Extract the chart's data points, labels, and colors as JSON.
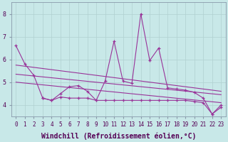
{
  "x": [
    0,
    1,
    2,
    3,
    4,
    5,
    6,
    7,
    8,
    9,
    10,
    11,
    12,
    13,
    14,
    15,
    16,
    17,
    18,
    19,
    20,
    21,
    22,
    23
  ],
  "y_line1": [
    6.6,
    5.8,
    5.3,
    4.3,
    4.2,
    4.5,
    4.8,
    4.85,
    4.6,
    4.2,
    5.05,
    6.8,
    5.05,
    4.95,
    8.0,
    5.95,
    6.5,
    4.75,
    4.7,
    4.65,
    4.55,
    4.3,
    3.6,
    4.0
  ],
  "y_line2": [
    null,
    null,
    null,
    4.3,
    4.2,
    4.35,
    4.3,
    4.3,
    4.3,
    4.2,
    4.2,
    4.2,
    4.2,
    4.2,
    4.2,
    4.2,
    4.2,
    4.2,
    4.2,
    4.2,
    4.15,
    4.1,
    3.6,
    3.9
  ],
  "trend1_x": [
    0,
    23
  ],
  "trend1_y": [
    5.75,
    4.6
  ],
  "trend2_x": [
    0,
    23
  ],
  "trend2_y": [
    5.35,
    4.45
  ],
  "trend3_x": [
    0,
    23
  ],
  "trend3_y": [
    5.0,
    4.1
  ],
  "ylim": [
    3.5,
    8.5
  ],
  "xlim": [
    -0.5,
    23.5
  ],
  "yticks": [
    4,
    5,
    6,
    7,
    8
  ],
  "color": "#993399",
  "bg_color": "#c8e8e8",
  "grid_color": "#aacccc",
  "xlabel": "Windchill (Refroidissement éolien,°C)",
  "xlabel_fontsize": 7,
  "tick_fontsize": 5.5
}
